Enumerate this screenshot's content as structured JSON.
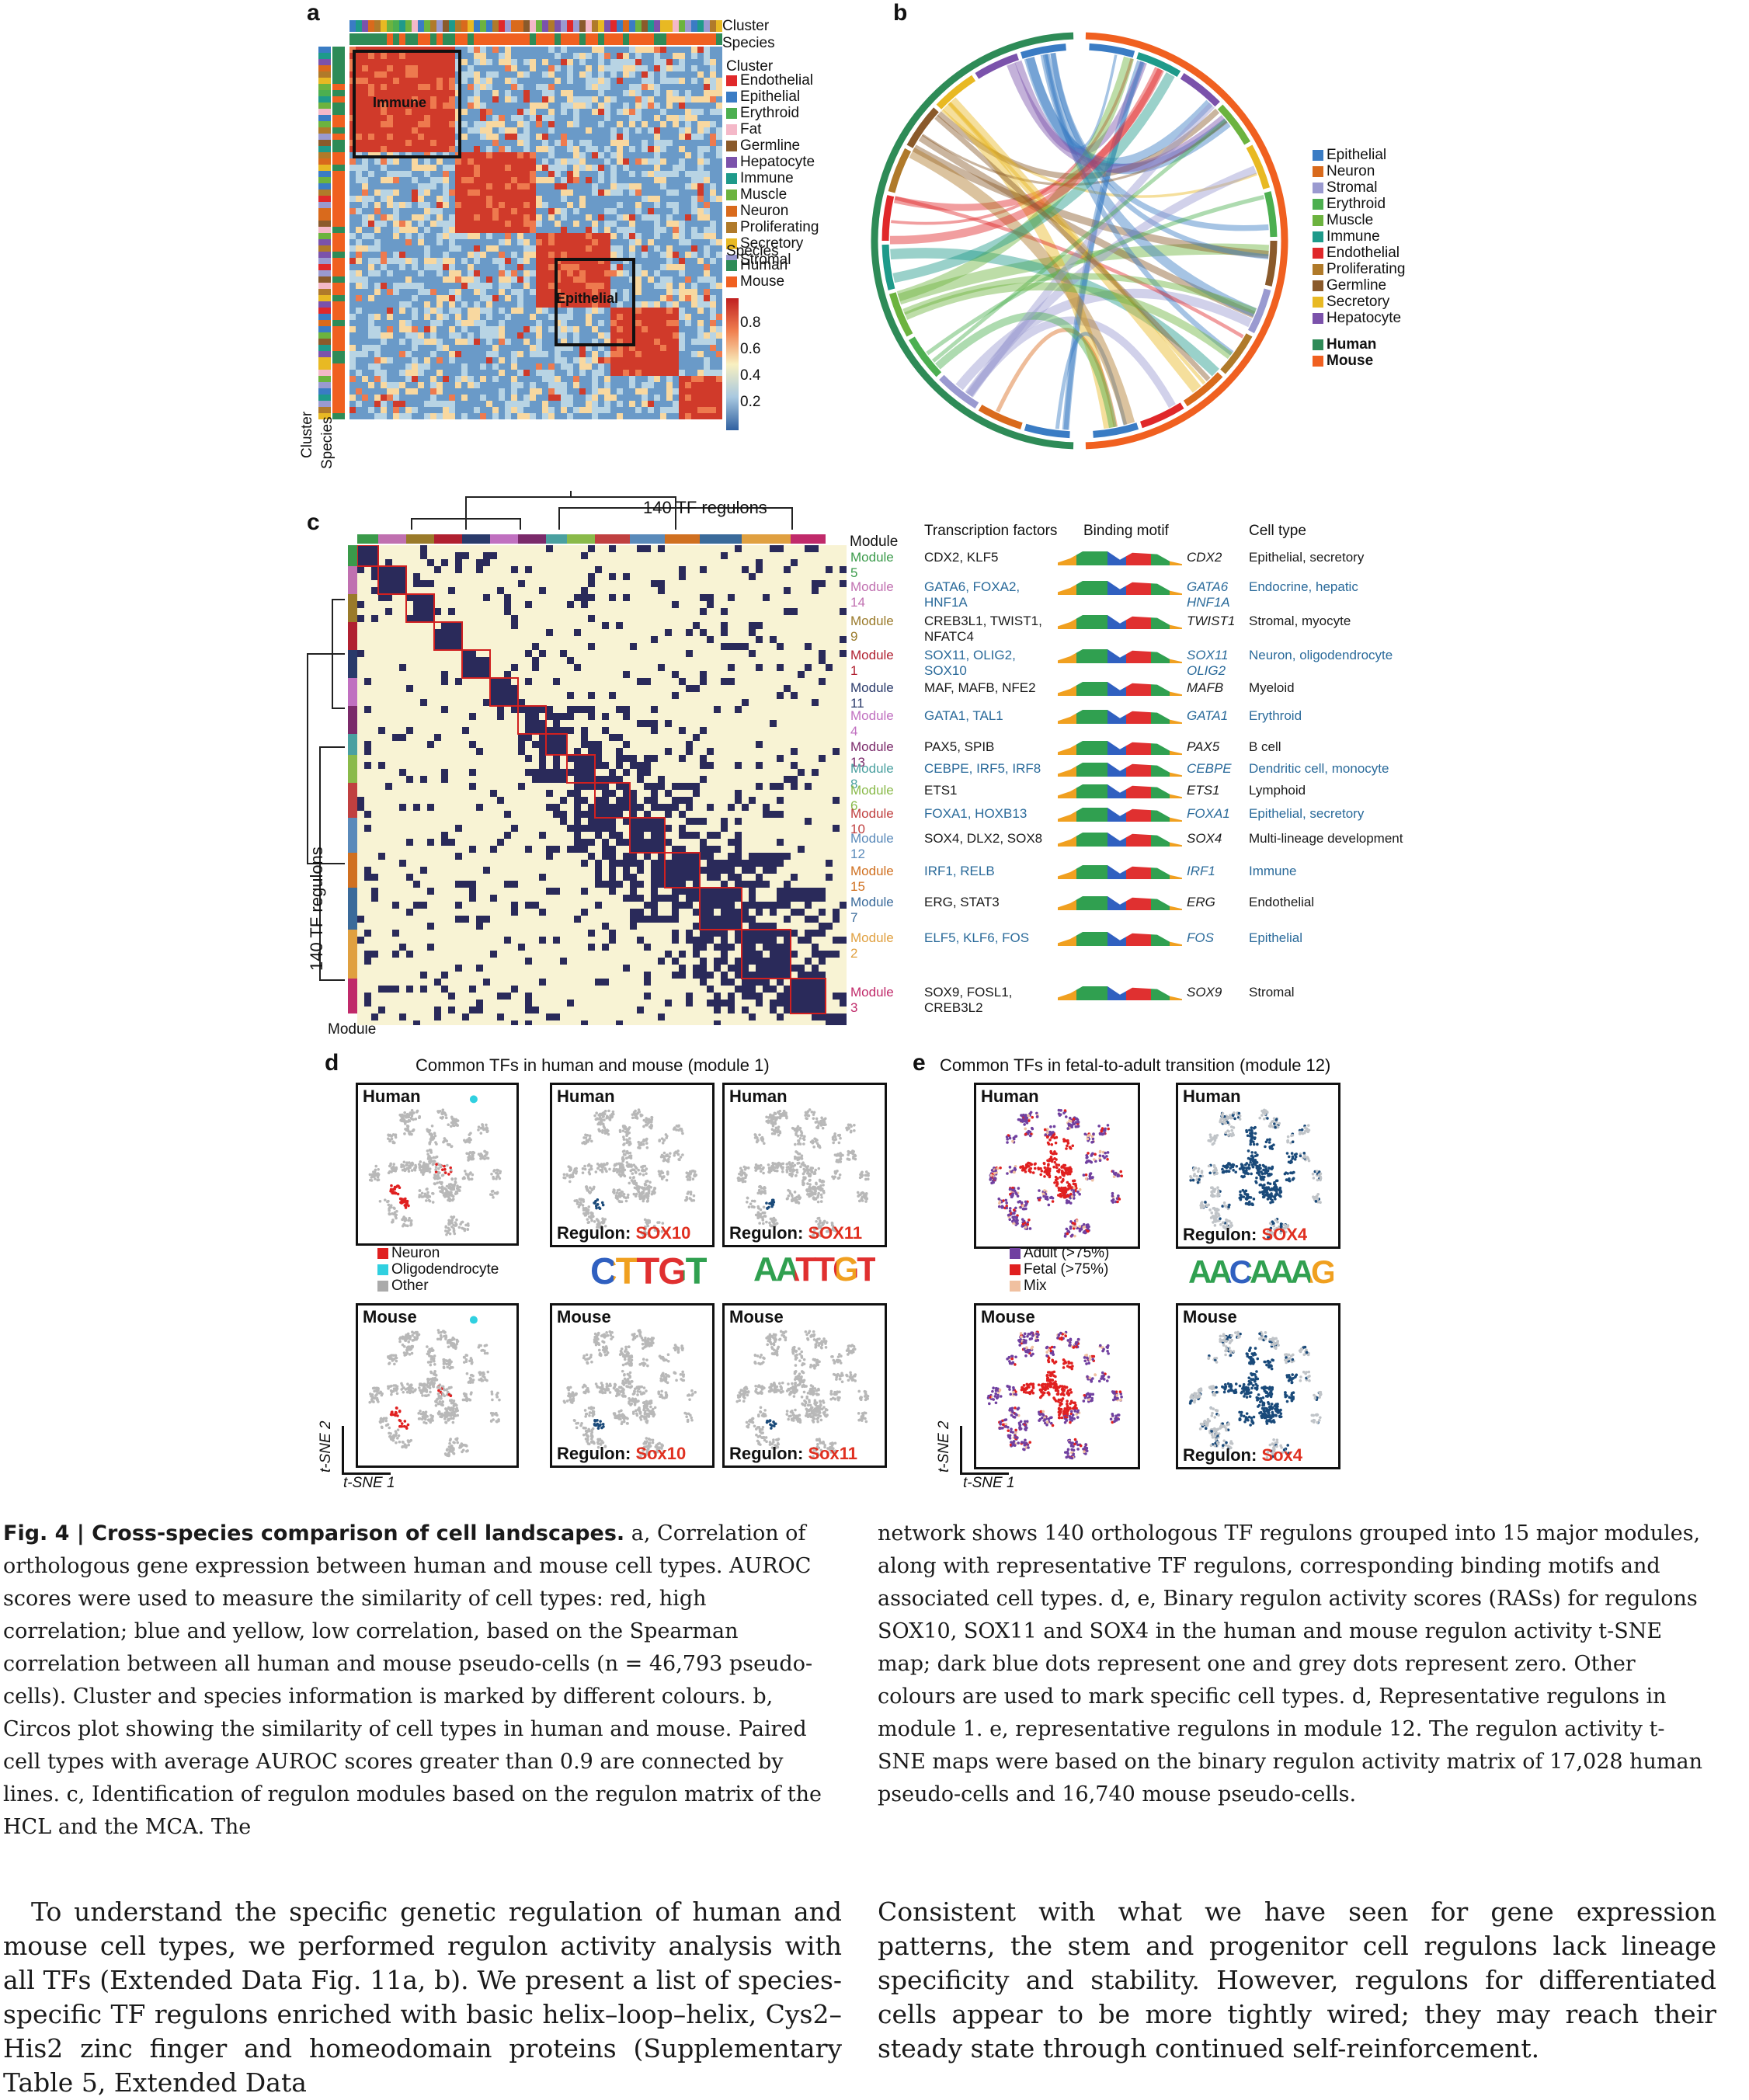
{
  "panel_a": {
    "label": "a",
    "top_labels": [
      "Cluster",
      "Species"
    ],
    "left_labels": [
      "Cluster",
      "Species"
    ],
    "box_labels": [
      "Immune",
      "Epithelial"
    ],
    "legend_cluster_title": "Cluster",
    "legend_cluster": [
      {
        "name": "Endothelial",
        "color": "#e0282a"
      },
      {
        "name": "Epithelial",
        "color": "#3a7cc4"
      },
      {
        "name": "Erythroid",
        "color": "#4caf50"
      },
      {
        "name": "Fat",
        "color": "#f4b8c8"
      },
      {
        "name": "Germline",
        "color": "#8a5a2b"
      },
      {
        "name": "Hepatocyte",
        "color": "#7b52ab"
      },
      {
        "name": "Immune",
        "color": "#1e9a8a"
      },
      {
        "name": "Muscle",
        "color": "#6cb33f"
      },
      {
        "name": "Neuron",
        "color": "#d96a1c"
      },
      {
        "name": "Proliferating",
        "color": "#b07a2a"
      },
      {
        "name": "Secretory",
        "color": "#e8b923"
      },
      {
        "name": "Stromal",
        "color": "#9a9ad0"
      }
    ],
    "legend_species_title": "Species",
    "legend_species": [
      {
        "name": "Human",
        "color": "#2e8b57"
      },
      {
        "name": "Mouse",
        "color": "#f06020"
      }
    ],
    "colorbar_ticks": [
      "0.8",
      "0.6",
      "0.4",
      "0.2"
    ]
  },
  "panel_b": {
    "label": "b",
    "legend_types": [
      {
        "name": "Epithelial",
        "color": "#3a7cc4"
      },
      {
        "name": "Neuron",
        "color": "#d96a1c"
      },
      {
        "name": "Stromal",
        "color": "#9a9ad0"
      },
      {
        "name": "Erythroid",
        "color": "#4caf50"
      },
      {
        "name": "Muscle",
        "color": "#6cb33f"
      },
      {
        "name": "Immune",
        "color": "#1e9a8a"
      },
      {
        "name": "Endothelial",
        "color": "#e0282a"
      },
      {
        "name": "Proliferating",
        "color": "#b07a2a"
      },
      {
        "name": "Germline",
        "color": "#8a5a2b"
      },
      {
        "name": "Secretory",
        "color": "#e8b923"
      },
      {
        "name": "Hepatocyte",
        "color": "#7b52ab"
      }
    ],
    "legend_species": [
      {
        "name": "Human",
        "color": "#2e8b57"
      },
      {
        "name": "Mouse",
        "color": "#f06020"
      }
    ]
  },
  "panel_c": {
    "label": "c",
    "top_title": "140 TF regulons",
    "side_title": "140 TF regulons",
    "module_top": "Module",
    "module_bottom": "Module",
    "headers": {
      "tf": "Transcription factors",
      "motif": "Binding motif",
      "cell": "Cell type"
    },
    "rows": [
      {
        "module": "Module 5",
        "color": "#3a9a4a",
        "tfs": "CDX2, KLF5",
        "motif": "CDX2",
        "cell": "Epithelial, secretory",
        "text_color": "#1a1a1a"
      },
      {
        "module": "Module 14",
        "color": "#c070b0",
        "tfs": "GATA6, FOXA2, HNF1A",
        "motif": "GATA6 HNF1A",
        "cell": "Endocrine, hepatic",
        "text_color": "#2a6a9a"
      },
      {
        "module": "Module 9",
        "color": "#9a7a2a",
        "tfs": "CREB3L1, TWIST1, NFATC4",
        "motif": "TWIST1",
        "cell": "Stromal, myocyte",
        "text_color": "#1a1a1a"
      },
      {
        "module": "Module 1",
        "color": "#b02030",
        "tfs": "SOX11, OLIG2, SOX10",
        "motif": "SOX11 OLIG2",
        "cell": "Neuron, oligodendrocyte",
        "text_color": "#2a6a9a"
      },
      {
        "module": "Module 11",
        "color": "#2a3a6a",
        "tfs": "MAF, MAFB, NFE2",
        "motif": "MAFB",
        "cell": "Myeloid",
        "text_color": "#1a1a1a"
      },
      {
        "module": "Module 4",
        "color": "#c070c0",
        "tfs": "GATA1, TAL1",
        "motif": "GATA1",
        "cell": "Erythroid",
        "text_color": "#2a6a9a"
      },
      {
        "module": "Module 13",
        "color": "#7a2a6a",
        "tfs": "PAX5, SPIB",
        "motif": "PAX5",
        "cell": "B cell",
        "text_color": "#1a1a1a"
      },
      {
        "module": "Module 8",
        "color": "#4aa0a0",
        "tfs": "CEBPE, IRF5, IRF8",
        "motif": "CEBPE",
        "cell": "Dendritic cell, monocyte",
        "text_color": "#2a6a9a"
      },
      {
        "module": "Module 6",
        "color": "#8aba4a",
        "tfs": "ETS1",
        "motif": "ETS1",
        "cell": "Lymphoid",
        "text_color": "#1a1a1a"
      },
      {
        "module": "Module 10",
        "color": "#c04040",
        "tfs": "FOXA1, HOXB13",
        "motif": "FOXA1",
        "cell": "Epithelial, secretory",
        "text_color": "#2a6a9a"
      },
      {
        "module": "Module 12",
        "color": "#5a8aba",
        "tfs": "SOX4, DLX2, SOX8",
        "motif": "SOX4",
        "cell": "Multi-lineage development",
        "text_color": "#1a1a1a"
      },
      {
        "module": "Module 15",
        "color": "#d07020",
        "tfs": "IRF1, RELB",
        "motif": "IRF1",
        "cell": "Immune",
        "text_color": "#2a6a9a"
      },
      {
        "module": "Module 7",
        "color": "#3a6a9a",
        "tfs": "ERG, STAT3",
        "motif": "ERG",
        "cell": "Endothelial",
        "text_color": "#1a1a1a"
      },
      {
        "module": "Module 2",
        "color": "#e0a040",
        "tfs": "ELF5, KLF6, FOS",
        "motif": "FOS",
        "cell": "Epithelial",
        "text_color": "#2a6a9a"
      },
      {
        "module": "Module 3",
        "color": "#c02a6a",
        "tfs": "SOX9, FOSL1, CREB3L2",
        "motif": "SOX9",
        "cell": "Stromal",
        "text_color": "#1a1a1a"
      }
    ]
  },
  "panel_d": {
    "label": "d",
    "title": "Common TFs in human and mouse (module 1)",
    "human": "Human",
    "mouse": "Mouse",
    "legend": [
      {
        "name": "Neuron",
        "color": "#e02020"
      },
      {
        "name": "Oligodendrocyte",
        "color": "#30d0e0"
      },
      {
        "name": "Other",
        "color": "#aaaaaa"
      }
    ],
    "regulon_prefix": "Regulon: ",
    "human_regulons": [
      "SOX10",
      "SOX11"
    ],
    "mouse_regulons": [
      "Sox10",
      "Sox11"
    ],
    "motif_letters": [
      "CTTGT",
      "AATTGT"
    ]
  },
  "panel_e": {
    "label": "e",
    "title": "Common TFs in fetal-to-adult transition (module 12)",
    "human": "Human",
    "mouse": "Mouse",
    "legend": [
      {
        "name": "Adult (>75%)",
        "color": "#7040a0"
      },
      {
        "name": "Fetal (>75%)",
        "color": "#e02020"
      },
      {
        "name": "Mix",
        "color": "#f0c0a0"
      }
    ],
    "regulon_prefix": "Regulon: ",
    "human_regulon": "SOX4",
    "mouse_regulon": "Sox4",
    "motif_letters": "AACAAAG"
  },
  "axes": {
    "y": "t-SNE 2",
    "x": "t-SNE 1"
  },
  "caption": {
    "fig": "Fig. 4 | ",
    "title": "Cross-species comparison of cell landscapes.",
    "col1": " a, Correlation of orthologous gene expression between human and mouse cell types. AUROC scores were used to measure the similarity of cell types: red, high correlation; blue and yellow, low correlation, based on the Spearman correlation between all human and mouse pseudo-cells (n = 46,793 pseudo-cells). Cluster and species information is marked by different colours. b, Circos plot showing the similarity of cell types in human and mouse. Paired cell types with average AUROC scores greater than 0.9 are connected by lines. c, Identification of regulon modules based on the regulon matrix of the HCL and the MCA. The",
    "col2": "network shows 140 orthologous TF regulons grouped into 15 major modules, along with representative TF regulons, corresponding binding motifs and associated cell types. d, e, Binary regulon activity scores (RASs) for regulons SOX10, SOX11 and SOX4 in the human and mouse regulon activity t-SNE map; dark blue dots represent one and grey dots represent zero. Other colours are used to mark specific cell types. d, Representative regulons in module 1. e, representative regulons in module 12. The regulon activity t-SNE maps were based on the binary regulon activity matrix of 17,028 human pseudo-cells and 16,740 mouse pseudo-cells."
  },
  "body": {
    "col1": "To understand the specific genetic regulation of human and mouse cell types, we performed regulon activity analysis with all TFs (Extended Data Fig. 11a, b). We present a list of species-specific TF regulons enriched with basic helix–loop–helix, Cys2–His2 zinc finger and homeodomain proteins (Supplementary Table 5, Extended Data",
    "col2": "Consistent with what we have seen for gene expression patterns, the stem and progenitor cell regulons lack lineage specificity and stability. However, regulons for differentiated cells appear to be more tightly wired; they may reach their steady state through continued self-reinforcement."
  }
}
